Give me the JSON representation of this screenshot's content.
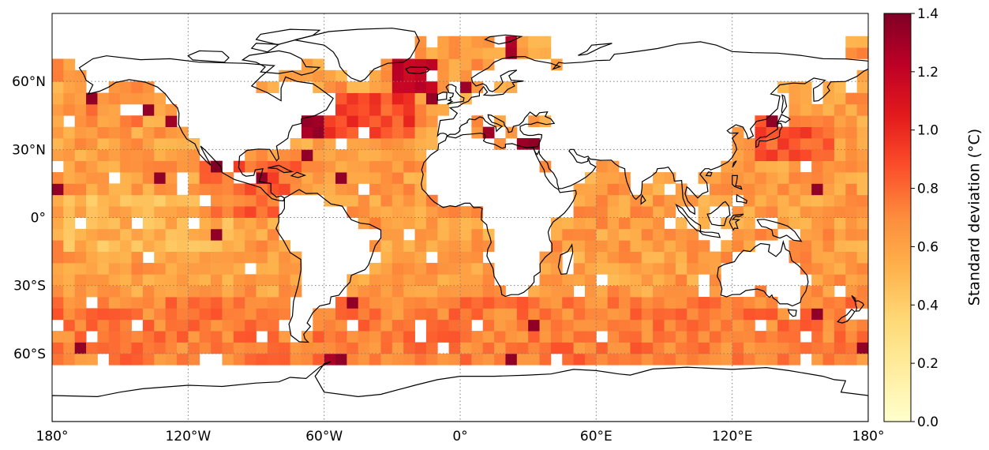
{
  "map": {
    "projection": "PlateCarree",
    "lon_range": [
      -180,
      180
    ],
    "lat_range": [
      -90,
      90
    ],
    "grid_lines": "dotted",
    "cell_size_deg": 5,
    "colormap": "YlOrRd",
    "colormap_stops": [
      "#ffffcc",
      "#ffeda0",
      "#fed976",
      "#feb24c",
      "#fd8d3c",
      "#fc4e2a",
      "#e31a1c",
      "#bd0026",
      "#800026"
    ],
    "x_tick_labels": [
      "180°",
      "120°W",
      "60°W",
      "0°",
      "60°E",
      "120°E",
      "180°"
    ],
    "x_tick_values": [
      -180,
      -120,
      -60,
      0,
      60,
      120,
      180
    ],
    "y_tick_labels": [
      "60°N",
      "30°N",
      "0°",
      "30°S",
      "60°S"
    ],
    "y_tick_values": [
      60,
      30,
      0,
      -30,
      -60
    ],
    "coastline_color": "#000000"
  },
  "colorbar": {
    "label": "Standard deviation (°C)",
    "range": [
      0.0,
      1.4
    ],
    "tick_labels": [
      "0.0",
      "0.2",
      "0.4",
      "0.6",
      "0.8",
      "1.0",
      "1.2",
      "1.4"
    ],
    "tick_values": [
      0.0,
      0.2,
      0.4,
      0.6,
      0.8,
      1.0,
      1.2,
      1.4
    ]
  },
  "chart_data": {
    "type": "heatmap",
    "title": "",
    "xlabel": "",
    "ylabel": "",
    "value_label": "Standard deviation (°C)",
    "value_range": [
      0.0,
      1.4
    ],
    "grid_resolution_deg": 5,
    "lat_extent_of_data": [
      -65,
      80
    ],
    "typical_values": {
      "open_ocean_tropics": 0.6,
      "southern_ocean": 0.75,
      "north_atlantic_gulf_stream": 1.2,
      "mediterranean": 1.3,
      "north_sea_baltic": 1.3,
      "kuroshio_region": 0.95,
      "equatorial_pacific": 0.45
    }
  }
}
